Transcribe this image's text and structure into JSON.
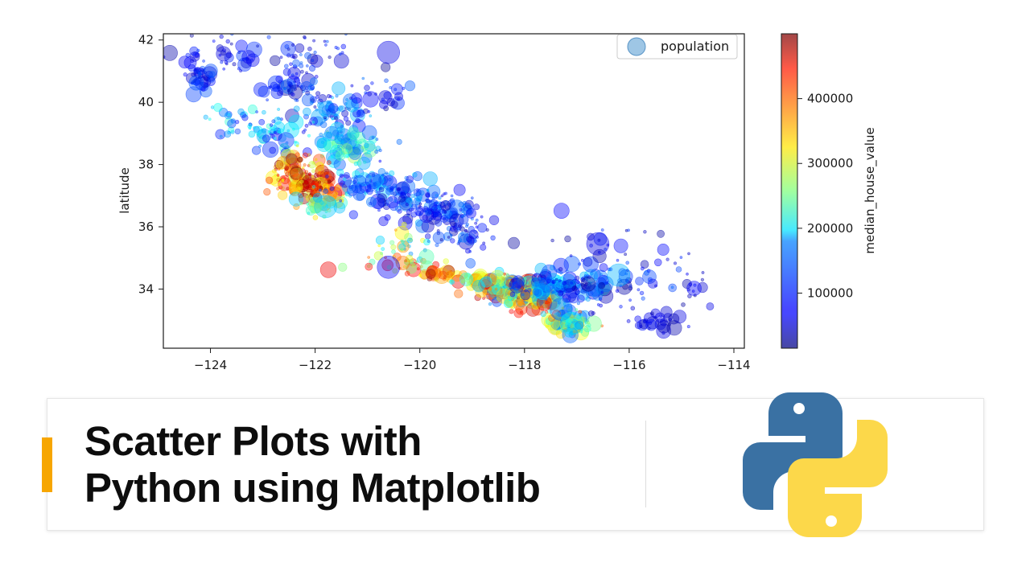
{
  "colors": {
    "accent": "#f7a600",
    "python_blue": "#3a71a3",
    "python_yellow": "#fcd84a",
    "axis": "#1a1a1a"
  },
  "banner": {
    "title_line1": "Scatter Plots with",
    "title_line2": "Python using Matplotlib",
    "logo_icon": "python-logo-icon"
  },
  "chart_data": {
    "type": "scatter",
    "title": "",
    "xlabel": "",
    "ylabel": "latitude",
    "xlim": [
      -124.9,
      -113.8
    ],
    "ylim": [
      32.1,
      42.2
    ],
    "xticks": [
      -124,
      -122,
      -120,
      -118,
      -116,
      -114
    ],
    "yticks": [
      34,
      36,
      38,
      40,
      42
    ],
    "grid": false,
    "legend": {
      "placement": "top-right",
      "entries": [
        "population"
      ]
    },
    "colorbar": {
      "label": "median_house_value",
      "range": [
        15000,
        500001
      ],
      "ticks": [
        100000,
        200000,
        300000,
        400000
      ],
      "colormap": "jet"
    },
    "size_encodes": "population",
    "color_encodes": "median_house_value",
    "alpha": 0.4,
    "clusters": [
      {
        "x": -124.2,
        "y": 40.8,
        "sx": 0.12,
        "sy": 0.25,
        "n": 45,
        "v": [
          0.05,
          0.22
        ]
      },
      {
        "x": -123.8,
        "y": 41.5,
        "sx": 0.45,
        "sy": 0.35,
        "n": 40,
        "v": [
          0.02,
          0.2
        ]
      },
      {
        "x": -122.0,
        "y": 41.6,
        "sx": 0.45,
        "sy": 0.35,
        "n": 45,
        "v": [
          0.02,
          0.22
        ]
      },
      {
        "x": -122.4,
        "y": 40.5,
        "sx": 0.3,
        "sy": 0.3,
        "n": 60,
        "v": [
          0.03,
          0.25
        ]
      },
      {
        "x": -121.6,
        "y": 39.7,
        "sx": 0.35,
        "sy": 0.4,
        "n": 70,
        "v": [
          0.05,
          0.32
        ]
      },
      {
        "x": -122.7,
        "y": 39.0,
        "sx": 0.35,
        "sy": 0.35,
        "n": 55,
        "v": [
          0.1,
          0.45
        ]
      },
      {
        "x": -123.5,
        "y": 39.3,
        "sx": 0.25,
        "sy": 0.3,
        "n": 30,
        "v": [
          0.1,
          0.4
        ]
      },
      {
        "x": -121.3,
        "y": 38.6,
        "sx": 0.3,
        "sy": 0.3,
        "n": 90,
        "v": [
          0.2,
          0.55
        ]
      },
      {
        "x": -122.3,
        "y": 37.7,
        "sx": 0.25,
        "sy": 0.35,
        "n": 130,
        "v": [
          0.55,
          1.0
        ]
      },
      {
        "x": -122.0,
        "y": 37.3,
        "sx": 0.2,
        "sy": 0.2,
        "n": 60,
        "v": [
          0.6,
          1.0
        ]
      },
      {
        "x": -121.9,
        "y": 36.7,
        "sx": 0.25,
        "sy": 0.2,
        "n": 40,
        "v": [
          0.3,
          0.75
        ]
      },
      {
        "x": -121.0,
        "y": 37.4,
        "sx": 0.35,
        "sy": 0.3,
        "n": 70,
        "v": [
          0.1,
          0.4
        ]
      },
      {
        "x": -120.4,
        "y": 36.9,
        "sx": 0.35,
        "sy": 0.3,
        "n": 70,
        "v": [
          0.05,
          0.3
        ]
      },
      {
        "x": -119.7,
        "y": 36.6,
        "sx": 0.3,
        "sy": 0.3,
        "n": 90,
        "v": [
          0.05,
          0.3
        ]
      },
      {
        "x": -119.2,
        "y": 35.9,
        "sx": 0.3,
        "sy": 0.35,
        "n": 70,
        "v": [
          0.03,
          0.25
        ]
      },
      {
        "x": -120.3,
        "y": 35.4,
        "sx": 0.3,
        "sy": 0.25,
        "n": 30,
        "v": [
          0.25,
          0.75
        ]
      },
      {
        "x": -120.3,
        "y": 34.75,
        "sx": 0.35,
        "sy": 0.15,
        "n": 30,
        "v": [
          0.45,
          0.9
        ]
      },
      {
        "x": -119.6,
        "y": 34.45,
        "sx": 0.3,
        "sy": 0.08,
        "n": 35,
        "v": [
          0.55,
          1.0
        ]
      },
      {
        "x": -118.9,
        "y": 34.3,
        "sx": 0.3,
        "sy": 0.1,
        "n": 50,
        "v": [
          0.35,
          0.8
        ]
      },
      {
        "x": -118.3,
        "y": 34.05,
        "sx": 0.3,
        "sy": 0.2,
        "n": 220,
        "v": [
          0.15,
          0.95
        ]
      },
      {
        "x": -117.9,
        "y": 33.7,
        "sx": 0.25,
        "sy": 0.18,
        "n": 110,
        "v": [
          0.25,
          0.95
        ]
      },
      {
        "x": -117.3,
        "y": 34.1,
        "sx": 0.4,
        "sy": 0.25,
        "n": 120,
        "v": [
          0.05,
          0.4
        ]
      },
      {
        "x": -117.15,
        "y": 32.9,
        "sx": 0.2,
        "sy": 0.2,
        "n": 120,
        "v": [
          0.2,
          0.8
        ]
      },
      {
        "x": -116.3,
        "y": 34.2,
        "sx": 0.55,
        "sy": 0.45,
        "n": 70,
        "v": [
          0.02,
          0.25
        ]
      },
      {
        "x": -115.5,
        "y": 32.9,
        "sx": 0.25,
        "sy": 0.15,
        "n": 30,
        "v": [
          0.02,
          0.15
        ]
      },
      {
        "x": -114.7,
        "y": 34.2,
        "sx": 0.2,
        "sy": 0.5,
        "n": 15,
        "v": [
          0.02,
          0.15
        ]
      },
      {
        "x": -116.2,
        "y": 35.2,
        "sx": 0.6,
        "sy": 0.6,
        "n": 30,
        "v": [
          0.02,
          0.2
        ]
      },
      {
        "x": -120.7,
        "y": 40.3,
        "sx": 0.3,
        "sy": 0.3,
        "n": 25,
        "v": [
          0.02,
          0.25
        ]
      }
    ],
    "large_points": [
      {
        "x": -121.8,
        "y": 36.65,
        "v": 0.32
      },
      {
        "x": -117.3,
        "y": 33.35,
        "v": 0.22
      },
      {
        "x": -120.6,
        "y": 34.7,
        "v": 0.12
      },
      {
        "x": -116.6,
        "y": 35.45,
        "v": 0.1
      },
      {
        "x": -116.2,
        "y": 34.45,
        "v": 0.3
      },
      {
        "x": -120.6,
        "y": 41.6,
        "v": 0.1
      },
      {
        "x": -117.1,
        "y": 32.9,
        "v": 0.35
      }
    ]
  }
}
